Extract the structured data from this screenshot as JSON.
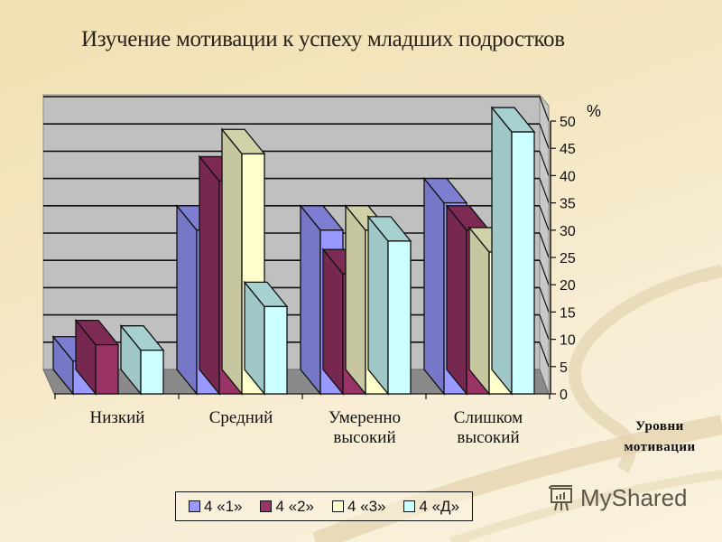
{
  "title": "Изучение мотивации к успеху младших подростков",
  "y_axis_unit": "%",
  "x_axis_title": [
    "Уровни",
    "мотивации"
  ],
  "categories": [
    {
      "label_lines": [
        "Низкий"
      ]
    },
    {
      "label_lines": [
        "Средний"
      ]
    },
    {
      "label_lines": [
        "Умеренно",
        "высокий"
      ]
    },
    {
      "label_lines": [
        "Слишком",
        "высокий"
      ]
    }
  ],
  "legend": [
    {
      "label": "4 «1»",
      "color": "#9999ff"
    },
    {
      "label": "4 «2»",
      "color": "#993366"
    },
    {
      "label": "4 «3»",
      "color": "#ffffcc"
    },
    {
      "label": "4 «Д»",
      "color": "#ccffff"
    }
  ],
  "watermark": "MyShared",
  "chart_data": {
    "type": "bar",
    "subtype": "3d-clustered-column",
    "title": "Изучение мотивации к успеху младших подростков",
    "xlabel": "Уровни мотивации",
    "ylabel": "%",
    "categories": [
      "Низкий",
      "Средний",
      "Умеренно высокий",
      "Слишком высокий"
    ],
    "series": [
      {
        "name": "4 «1»",
        "color": "#9999ff",
        "values": [
          6,
          30,
          30,
          35
        ]
      },
      {
        "name": "4 «2»",
        "color": "#993366",
        "values": [
          9,
          39,
          22,
          30
        ]
      },
      {
        "name": "4 «3»",
        "color": "#ffffcc",
        "values": [
          0,
          44,
          30,
          26
        ]
      },
      {
        "name": "4 «Д»",
        "color": "#ccffff",
        "values": [
          8,
          16,
          28,
          48
        ]
      }
    ],
    "ylim": [
      0,
      50
    ],
    "yticks": [
      0,
      5,
      10,
      15,
      20,
      25,
      30,
      35,
      40,
      45,
      50
    ],
    "grid": true,
    "legend_position": "bottom"
  }
}
